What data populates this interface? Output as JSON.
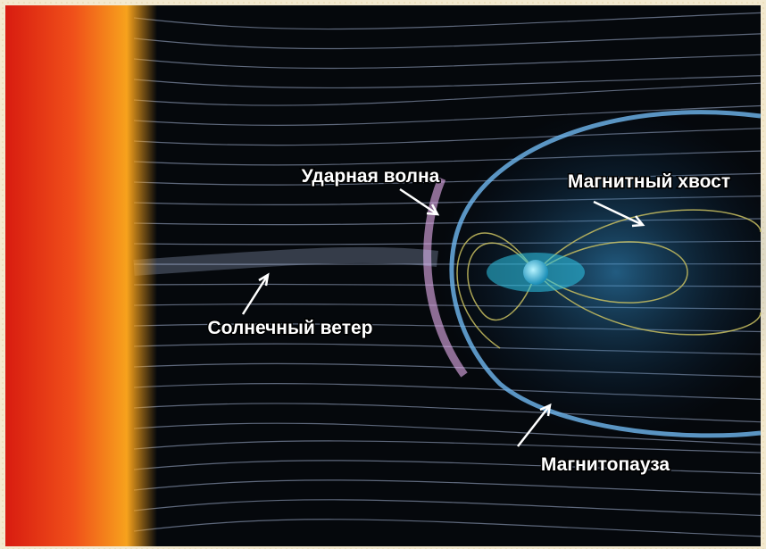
{
  "diagram": {
    "labels": {
      "shock_wave": "Ударная волна",
      "magnetic_tail": "Магнитный хвост",
      "solar_wind": "Солнечный ветер",
      "magnetopause": "Магнитопауза"
    }
  }
}
